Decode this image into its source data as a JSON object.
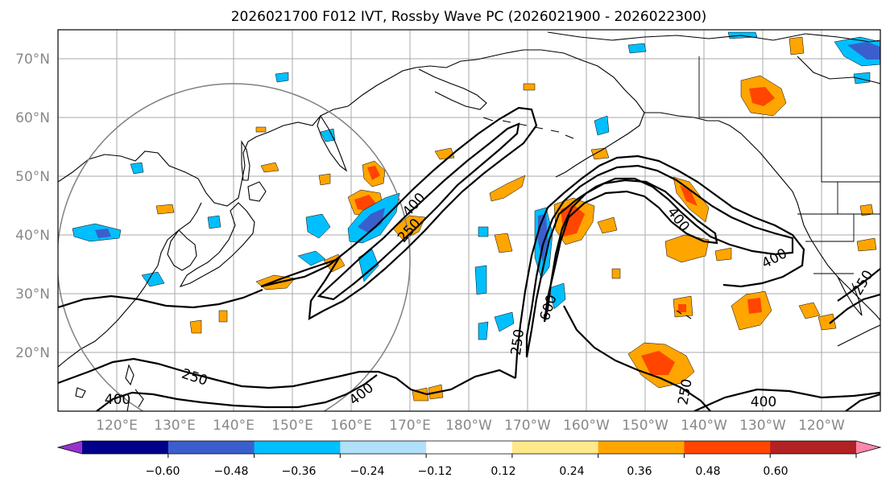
{
  "title": "2026021700 F012 IVT, Rossby Wave PC (2026021900 - 2026022300)",
  "lat_labels": [
    "70°N",
    "60°N",
    "50°N",
    "40°N",
    "30°N",
    "20°N"
  ],
  "lon_labels": [
    "120°E",
    "130°E",
    "140°E",
    "150°E",
    "160°E",
    "170°E",
    "180°W",
    "170°W",
    "160°W",
    "150°W",
    "140°W",
    "130°W",
    "120°W"
  ],
  "ivt_contour_labels": [
    "400",
    "250",
    "400",
    "250",
    "600",
    "400",
    "400",
    "250",
    "400",
    "250",
    "400",
    "250"
  ],
  "colorbar": {
    "tick_labels": [
      "−0.60",
      "−0.48",
      "−0.36",
      "−0.24",
      "−0.12",
      "0.12",
      "0.24",
      "0.36",
      "0.48",
      "0.60"
    ],
    "colors": [
      "#9932cc",
      "#00008b",
      "#3a5fcd",
      "#00bfff",
      "#b0e0fa",
      "#ffffff",
      "#ffe98a",
      "#ffa500",
      "#ff4500",
      "#b22222",
      "#ff88aa"
    ]
  },
  "colors": {
    "grid": "#aaaaaa",
    "axis_label": "#888888",
    "circle": "#808080"
  }
}
